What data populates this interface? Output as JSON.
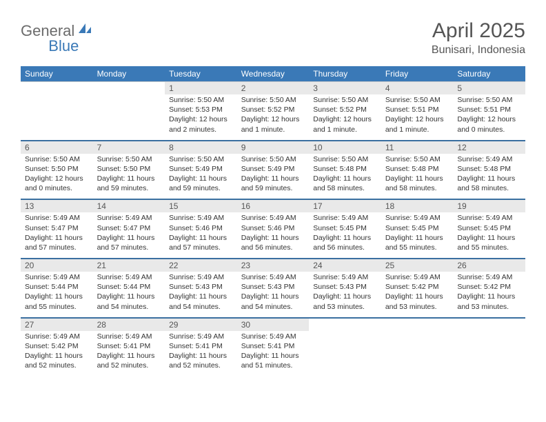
{
  "logo": {
    "part1": "General",
    "part2": "Blue"
  },
  "title": "April 2025",
  "subtitle": "Bunisari, Indonesia",
  "colors": {
    "header_bg": "#3a79b7",
    "header_text": "#ffffff",
    "daynum_bg": "#e9e9e9",
    "body_text": "#333333",
    "title_text": "#555555",
    "logo_gray": "#6b6b6b",
    "logo_blue": "#3a79b7",
    "separator": "#3a6fa0"
  },
  "typography": {
    "title_fontsize": 30,
    "subtitle_fontsize": 16,
    "dayhead_fontsize": 12,
    "daynum_fontsize": 12,
    "cell_fontsize": 10.5
  },
  "day_headers": [
    "Sunday",
    "Monday",
    "Tuesday",
    "Wednesday",
    "Thursday",
    "Friday",
    "Saturday"
  ],
  "weeks": [
    {
      "nums": [
        "",
        "",
        "1",
        "2",
        "3",
        "4",
        "5"
      ],
      "cells": [
        null,
        null,
        {
          "sunrise": "Sunrise: 5:50 AM",
          "sunset": "Sunset: 5:53 PM",
          "daylight": "Daylight: 12 hours and 2 minutes."
        },
        {
          "sunrise": "Sunrise: 5:50 AM",
          "sunset": "Sunset: 5:52 PM",
          "daylight": "Daylight: 12 hours and 1 minute."
        },
        {
          "sunrise": "Sunrise: 5:50 AM",
          "sunset": "Sunset: 5:52 PM",
          "daylight": "Daylight: 12 hours and 1 minute."
        },
        {
          "sunrise": "Sunrise: 5:50 AM",
          "sunset": "Sunset: 5:51 PM",
          "daylight": "Daylight: 12 hours and 1 minute."
        },
        {
          "sunrise": "Sunrise: 5:50 AM",
          "sunset": "Sunset: 5:51 PM",
          "daylight": "Daylight: 12 hours and 0 minutes."
        }
      ]
    },
    {
      "nums": [
        "6",
        "7",
        "8",
        "9",
        "10",
        "11",
        "12"
      ],
      "cells": [
        {
          "sunrise": "Sunrise: 5:50 AM",
          "sunset": "Sunset: 5:50 PM",
          "daylight": "Daylight: 12 hours and 0 minutes."
        },
        {
          "sunrise": "Sunrise: 5:50 AM",
          "sunset": "Sunset: 5:50 PM",
          "daylight": "Daylight: 11 hours and 59 minutes."
        },
        {
          "sunrise": "Sunrise: 5:50 AM",
          "sunset": "Sunset: 5:49 PM",
          "daylight": "Daylight: 11 hours and 59 minutes."
        },
        {
          "sunrise": "Sunrise: 5:50 AM",
          "sunset": "Sunset: 5:49 PM",
          "daylight": "Daylight: 11 hours and 59 minutes."
        },
        {
          "sunrise": "Sunrise: 5:50 AM",
          "sunset": "Sunset: 5:48 PM",
          "daylight": "Daylight: 11 hours and 58 minutes."
        },
        {
          "sunrise": "Sunrise: 5:50 AM",
          "sunset": "Sunset: 5:48 PM",
          "daylight": "Daylight: 11 hours and 58 minutes."
        },
        {
          "sunrise": "Sunrise: 5:49 AM",
          "sunset": "Sunset: 5:48 PM",
          "daylight": "Daylight: 11 hours and 58 minutes."
        }
      ]
    },
    {
      "nums": [
        "13",
        "14",
        "15",
        "16",
        "17",
        "18",
        "19"
      ],
      "cells": [
        {
          "sunrise": "Sunrise: 5:49 AM",
          "sunset": "Sunset: 5:47 PM",
          "daylight": "Daylight: 11 hours and 57 minutes."
        },
        {
          "sunrise": "Sunrise: 5:49 AM",
          "sunset": "Sunset: 5:47 PM",
          "daylight": "Daylight: 11 hours and 57 minutes."
        },
        {
          "sunrise": "Sunrise: 5:49 AM",
          "sunset": "Sunset: 5:46 PM",
          "daylight": "Daylight: 11 hours and 57 minutes."
        },
        {
          "sunrise": "Sunrise: 5:49 AM",
          "sunset": "Sunset: 5:46 PM",
          "daylight": "Daylight: 11 hours and 56 minutes."
        },
        {
          "sunrise": "Sunrise: 5:49 AM",
          "sunset": "Sunset: 5:45 PM",
          "daylight": "Daylight: 11 hours and 56 minutes."
        },
        {
          "sunrise": "Sunrise: 5:49 AM",
          "sunset": "Sunset: 5:45 PM",
          "daylight": "Daylight: 11 hours and 55 minutes."
        },
        {
          "sunrise": "Sunrise: 5:49 AM",
          "sunset": "Sunset: 5:45 PM",
          "daylight": "Daylight: 11 hours and 55 minutes."
        }
      ]
    },
    {
      "nums": [
        "20",
        "21",
        "22",
        "23",
        "24",
        "25",
        "26"
      ],
      "cells": [
        {
          "sunrise": "Sunrise: 5:49 AM",
          "sunset": "Sunset: 5:44 PM",
          "daylight": "Daylight: 11 hours and 55 minutes."
        },
        {
          "sunrise": "Sunrise: 5:49 AM",
          "sunset": "Sunset: 5:44 PM",
          "daylight": "Daylight: 11 hours and 54 minutes."
        },
        {
          "sunrise": "Sunrise: 5:49 AM",
          "sunset": "Sunset: 5:43 PM",
          "daylight": "Daylight: 11 hours and 54 minutes."
        },
        {
          "sunrise": "Sunrise: 5:49 AM",
          "sunset": "Sunset: 5:43 PM",
          "daylight": "Daylight: 11 hours and 54 minutes."
        },
        {
          "sunrise": "Sunrise: 5:49 AM",
          "sunset": "Sunset: 5:43 PM",
          "daylight": "Daylight: 11 hours and 53 minutes."
        },
        {
          "sunrise": "Sunrise: 5:49 AM",
          "sunset": "Sunset: 5:42 PM",
          "daylight": "Daylight: 11 hours and 53 minutes."
        },
        {
          "sunrise": "Sunrise: 5:49 AM",
          "sunset": "Sunset: 5:42 PM",
          "daylight": "Daylight: 11 hours and 53 minutes."
        }
      ]
    },
    {
      "nums": [
        "27",
        "28",
        "29",
        "30",
        "",
        "",
        ""
      ],
      "cells": [
        {
          "sunrise": "Sunrise: 5:49 AM",
          "sunset": "Sunset: 5:42 PM",
          "daylight": "Daylight: 11 hours and 52 minutes."
        },
        {
          "sunrise": "Sunrise: 5:49 AM",
          "sunset": "Sunset: 5:41 PM",
          "daylight": "Daylight: 11 hours and 52 minutes."
        },
        {
          "sunrise": "Sunrise: 5:49 AM",
          "sunset": "Sunset: 5:41 PM",
          "daylight": "Daylight: 11 hours and 52 minutes."
        },
        {
          "sunrise": "Sunrise: 5:49 AM",
          "sunset": "Sunset: 5:41 PM",
          "daylight": "Daylight: 11 hours and 51 minutes."
        },
        null,
        null,
        null
      ]
    }
  ]
}
